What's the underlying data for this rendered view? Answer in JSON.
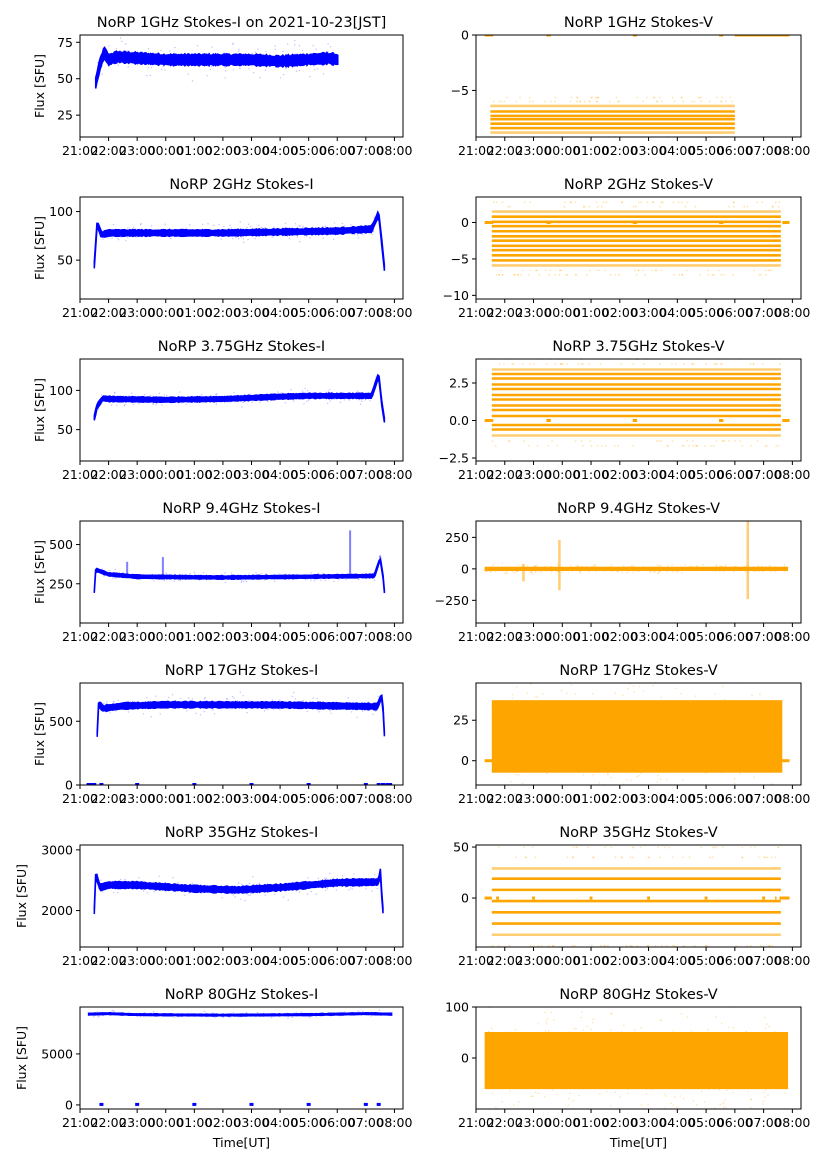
{
  "figure": {
    "xlabel_bottom": "Time[UT]",
    "ylabel_left": "Flux [SFU]",
    "colors": {
      "stokes_i": "#0000ff",
      "stokes_v": "#ffa500",
      "axis": "#000000"
    },
    "x_tick_labels": [
      "21:00",
      "22:00",
      "23:00",
      "00:00",
      "01:00",
      "02:00",
      "03:00",
      "04:00",
      "05:00",
      "06:00",
      "07:00",
      "08:00"
    ]
  },
  "chart_data": [
    {
      "type": "scatter",
      "title": "NoRP 1GHz Stokes-I on 2021-10-23[JST]",
      "ylabel": "Flux [SFU]",
      "xlabel": "",
      "color": "#0000ff",
      "xlim": [
        21.0,
        32.3
      ],
      "ylim": [
        10,
        80
      ],
      "yticks": [
        25,
        50,
        75
      ],
      "series": [
        {
          "name": "Stokes-I",
          "start": 21.55,
          "end": 30.02,
          "profile": [
            [
              21.55,
              47
            ],
            [
              21.7,
              60
            ],
            [
              21.85,
              68
            ],
            [
              22.0,
              63
            ],
            [
              22.3,
              65
            ],
            [
              24.0,
              63
            ],
            [
              27.0,
              63
            ],
            [
              28.0,
              62
            ],
            [
              29.7,
              64
            ],
            [
              30.02,
              63
            ]
          ],
          "spread": 3.5
        }
      ]
    },
    {
      "type": "scatter",
      "title": "NoRP 1GHz Stokes-V",
      "ylabel": "",
      "xlabel": "",
      "color": "#ffa500",
      "xlim": [
        21.0,
        32.3
      ],
      "ylim": [
        -9.2,
        0
      ],
      "yticks": [
        -5,
        0
      ],
      "series": [
        {
          "name": "Stokes-V",
          "start": 21.5,
          "end": 30.0,
          "levels": [
            -6.4,
            -6.9,
            -7.3,
            -7.6,
            -8.0,
            -8.4,
            -8.8
          ],
          "zero_segments": [
            [
              21.3,
              21.6
            ],
            [
              23.45,
              23.6
            ],
            [
              26.45,
              26.6
            ],
            [
              29.45,
              29.6
            ],
            [
              30.0,
              31.9
            ]
          ]
        }
      ]
    },
    {
      "type": "scatter",
      "title": "NoRP 2GHz Stokes-I",
      "ylabel": "Flux [SFU]",
      "xlabel": "",
      "color": "#0000ff",
      "xlim": [
        21.0,
        32.3
      ],
      "ylim": [
        10,
        115
      ],
      "yticks": [
        50,
        100
      ],
      "series": [
        {
          "name": "Stokes-I",
          "start": 21.5,
          "end": 31.65,
          "profile": [
            [
              21.5,
              45
            ],
            [
              21.6,
              88
            ],
            [
              21.75,
              76
            ],
            [
              22.0,
              78
            ],
            [
              26.0,
              78
            ],
            [
              30.0,
              80
            ],
            [
              31.2,
              82
            ],
            [
              31.45,
              98
            ],
            [
              31.55,
              70
            ],
            [
              31.65,
              42
            ]
          ],
          "spread": 3
        }
      ]
    },
    {
      "type": "scatter",
      "title": "NoRP 2GHz Stokes-V",
      "ylabel": "",
      "xlabel": "",
      "color": "#ffa500",
      "xlim": [
        21.0,
        32.3
      ],
      "ylim": [
        -10.5,
        3.5
      ],
      "yticks": [
        -10,
        -5,
        0
      ],
      "series": [
        {
          "name": "Stokes-V",
          "start": 21.55,
          "end": 31.6,
          "levels": [
            1.5,
            0.8,
            0.1,
            -0.5,
            -1.2,
            -1.9,
            -2.5,
            -3.2,
            -3.8,
            -4.5,
            -5.2,
            -5.9
          ],
          "zero_segments": [
            [
              21.3,
              21.6
            ],
            [
              23.45,
              23.6
            ],
            [
              26.45,
              26.6
            ],
            [
              29.45,
              29.6
            ],
            [
              31.65,
              31.9
            ]
          ]
        }
      ]
    },
    {
      "type": "scatter",
      "title": "NoRP 3.75GHz Stokes-I",
      "ylabel": "Flux [SFU]",
      "xlabel": "",
      "color": "#0000ff",
      "xlim": [
        21.0,
        32.3
      ],
      "ylim": [
        10,
        140
      ],
      "yticks": [
        50,
        100
      ],
      "series": [
        {
          "name": "Stokes-I",
          "start": 21.5,
          "end": 31.65,
          "profile": [
            [
              21.5,
              65
            ],
            [
              21.6,
              80
            ],
            [
              21.8,
              90
            ],
            [
              22.0,
              89
            ],
            [
              24.0,
              88
            ],
            [
              26.0,
              89
            ],
            [
              28.0,
              92
            ],
            [
              29.0,
              93
            ],
            [
              31.2,
              93
            ],
            [
              31.45,
              120
            ],
            [
              31.55,
              85
            ],
            [
              31.65,
              62
            ]
          ],
          "spread": 3
        }
      ]
    },
    {
      "type": "scatter",
      "title": "NoRP 3.75GHz Stokes-V",
      "ylabel": "",
      "xlabel": "",
      "color": "#ffa500",
      "xlim": [
        21.0,
        32.3
      ],
      "ylim": [
        -2.7,
        4.1
      ],
      "yticks": [
        -2.5,
        0.0,
        2.5
      ],
      "series": [
        {
          "name": "Stokes-V",
          "start": 21.55,
          "end": 31.6,
          "levels": [
            3.4,
            3.1,
            2.8,
            2.4,
            2.1,
            1.7,
            1.4,
            1.0,
            0.7,
            0.3,
            -0.3,
            -0.6,
            -1.0
          ],
          "zero_segments": [
            [
              21.3,
              21.6
            ],
            [
              23.45,
              23.6
            ],
            [
              26.45,
              26.6
            ],
            [
              29.45,
              29.6
            ],
            [
              31.65,
              31.9
            ]
          ]
        }
      ]
    },
    {
      "type": "scatter",
      "title": "NoRP 9.4GHz Stokes-I",
      "ylabel": "Flux [SFU]",
      "xlabel": "",
      "color": "#0000ff",
      "xlim": [
        21.0,
        32.3
      ],
      "ylim": [
        0,
        650
      ],
      "yticks": [
        250,
        500
      ],
      "series": [
        {
          "name": "Stokes-I",
          "start": 21.5,
          "end": 31.65,
          "profile": [
            [
              21.5,
              200
            ],
            [
              21.55,
              340
            ],
            [
              22.0,
              310
            ],
            [
              23.0,
              295
            ],
            [
              26.0,
              290
            ],
            [
              29.0,
              295
            ],
            [
              31.3,
              300
            ],
            [
              31.5,
              410
            ],
            [
              31.6,
              300
            ],
            [
              31.65,
              200
            ]
          ],
          "spread": 10,
          "spikes": [
            [
              22.65,
              390
            ],
            [
              23.9,
              420
            ],
            [
              30.45,
              590
            ],
            [
              31.5,
              430
            ]
          ]
        }
      ]
    },
    {
      "type": "scatter",
      "title": "NoRP 9.4GHz Stokes-V",
      "ylabel": "",
      "xlabel": "",
      "color": "#ffa500",
      "xlim": [
        21.0,
        32.3
      ],
      "ylim": [
        -430,
        380
      ],
      "yticks": [
        -250,
        0,
        250
      ],
      "series": [
        {
          "name": "Stokes-V",
          "start": 21.3,
          "end": 31.85,
          "center": 0,
          "spread": 12,
          "spikes": [
            [
              22.65,
              -100,
              40
            ],
            [
              23.9,
              -170,
              230
            ],
            [
              30.45,
              -240,
              380
            ]
          ]
        }
      ]
    },
    {
      "type": "scatter",
      "title": "NoRP 17GHz Stokes-I",
      "ylabel": "Flux [SFU]",
      "xlabel": "",
      "color": "#0000ff",
      "xlim": [
        21.0,
        32.3
      ],
      "ylim": [
        0,
        800
      ],
      "yticks": [
        0,
        500
      ],
      "series": [
        {
          "name": "Stokes-I",
          "start": 21.6,
          "end": 31.65,
          "profile": [
            [
              21.6,
              400
            ],
            [
              21.65,
              640
            ],
            [
              21.8,
              600
            ],
            [
              22.5,
              620
            ],
            [
              24.0,
              630
            ],
            [
              28.0,
              628
            ],
            [
              31.4,
              615
            ],
            [
              31.55,
              700
            ],
            [
              31.62,
              560
            ],
            [
              31.65,
              400
            ]
          ],
          "spread": 22,
          "zero_marks": [
            21.3,
            21.4,
            21.5,
            21.75,
            23.0,
            25.0,
            27.0,
            29.0,
            31.0,
            31.45,
            31.6,
            31.75,
            31.85
          ]
        }
      ]
    },
    {
      "type": "scatter",
      "title": "NoRP 17GHz Stokes-V",
      "ylabel": "",
      "xlabel": "",
      "color": "#ffa500",
      "xlim": [
        21.0,
        32.3
      ],
      "ylim": [
        -15,
        48
      ],
      "yticks": [
        0,
        25
      ],
      "series": [
        {
          "name": "Stokes-V",
          "start": 21.55,
          "end": 31.65,
          "center": 15,
          "spread": 16,
          "zero_segments": [
            [
              21.3,
              21.6
            ],
            [
              31.6,
              31.9
            ]
          ]
        }
      ]
    },
    {
      "type": "scatter",
      "title": "NoRP 35GHz Stokes-I",
      "ylabel": "Flux [SFU]",
      "xlabel": "",
      "color": "#0000ff",
      "xlim": [
        21.0,
        32.3
      ],
      "ylim": [
        1400,
        3080
      ],
      "yticks": [
        2000,
        3000
      ],
      "series": [
        {
          "name": "Stokes-I",
          "start": 21.5,
          "end": 31.6,
          "profile": [
            [
              21.5,
              2000
            ],
            [
              21.55,
              2600
            ],
            [
              21.7,
              2380
            ],
            [
              22.0,
              2420
            ],
            [
              23.0,
              2420
            ],
            [
              25.0,
              2360
            ],
            [
              26.5,
              2340
            ],
            [
              28.0,
              2380
            ],
            [
              30.0,
              2460
            ],
            [
              31.45,
              2470
            ],
            [
              31.5,
              2700
            ],
            [
              31.55,
              2300
            ],
            [
              31.6,
              2000
            ]
          ],
          "spread": 50
        }
      ]
    },
    {
      "type": "scatter",
      "title": "NoRP 35GHz Stokes-V",
      "ylabel": "",
      "xlabel": "",
      "color": "#ffa500",
      "xlim": [
        21.0,
        32.3
      ],
      "ylim": [
        -48,
        52
      ],
      "yticks": [
        0,
        50
      ],
      "series": [
        {
          "name": "Stokes-V",
          "start": 21.55,
          "end": 31.6,
          "levels": [
            29,
            19,
            8,
            -3,
            -14,
            -25,
            -36
          ],
          "zero_segments": [
            [
              21.3,
              21.55
            ],
            [
              21.7,
              21.8
            ],
            [
              22.95,
              23.05
            ],
            [
              24.95,
              25.05
            ],
            [
              26.95,
              27.05
            ],
            [
              28.95,
              29.05
            ],
            [
              30.95,
              31.05
            ],
            [
              31.4,
              31.45
            ],
            [
              31.55,
              31.9
            ]
          ]
        }
      ]
    },
    {
      "type": "scatter",
      "title": "NoRP 80GHz Stokes-I",
      "ylabel": "Flux [SFU]",
      "xlabel": "Time[UT]",
      "color": "#0000ff",
      "xlim": [
        21.0,
        32.3
      ],
      "ylim": [
        -400,
        9600
      ],
      "yticks": [
        0,
        5000
      ],
      "series": [
        {
          "name": "Stokes-I",
          "start": 21.3,
          "end": 31.9,
          "profile": [
            [
              21.3,
              8900
            ],
            [
              22.0,
              8950
            ],
            [
              23.0,
              8850
            ],
            [
              26.0,
              8800
            ],
            [
              29.0,
              8850
            ],
            [
              31.0,
              8950
            ],
            [
              31.9,
              8900
            ]
          ],
          "spread": 80,
          "zero_marks": [
            21.75,
            23.0,
            25.0,
            27.0,
            29.0,
            31.0,
            31.45
          ]
        }
      ]
    },
    {
      "type": "scatter",
      "title": "NoRP 80GHz Stokes-V",
      "ylabel": "",
      "xlabel": "Time[UT]",
      "color": "#ffa500",
      "xlim": [
        21.0,
        32.3
      ],
      "ylim": [
        -100,
        100
      ],
      "yticks": [
        0,
        100
      ],
      "series": [
        {
          "name": "Stokes-V",
          "start": 21.3,
          "end": 31.85,
          "center": -5,
          "spread": 40
        }
      ]
    }
  ]
}
